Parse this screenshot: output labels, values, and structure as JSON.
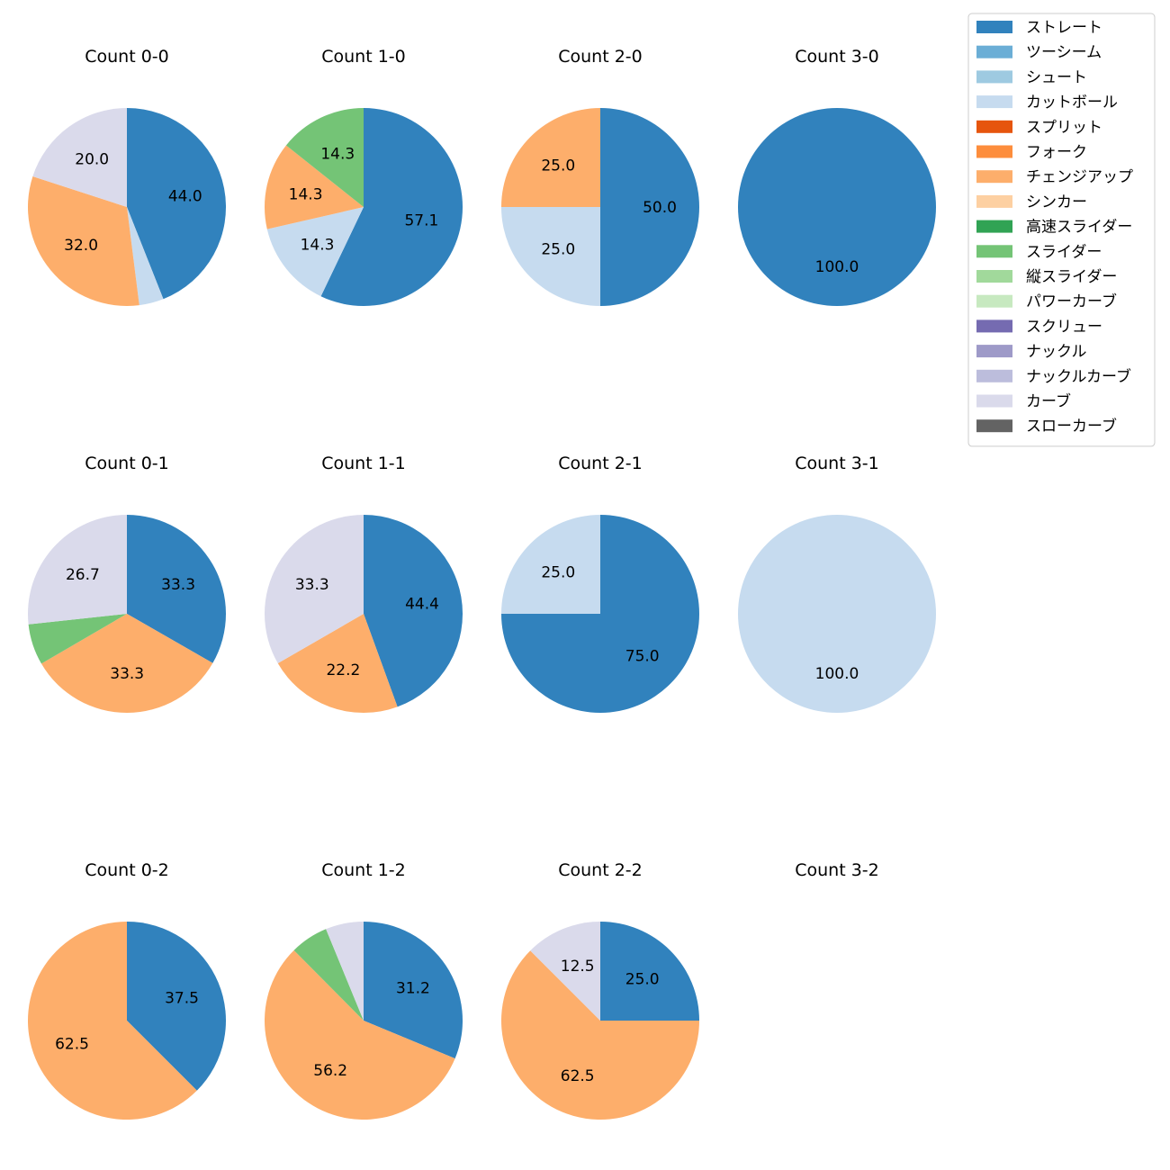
{
  "chart_data": {
    "type": "pie",
    "legend": {
      "placement": "top-right",
      "entries": [
        {
          "name": "ストレート",
          "color": "#3182bd"
        },
        {
          "name": "ツーシーム",
          "color": "#6baed6"
        },
        {
          "name": "シュート",
          "color": "#9ecae1"
        },
        {
          "name": "カットボール",
          "color": "#c6dbef"
        },
        {
          "name": "スプリット",
          "color": "#e6550d"
        },
        {
          "name": "フォーク",
          "color": "#fd8d3c"
        },
        {
          "name": "チェンジアップ",
          "color": "#fdae6b"
        },
        {
          "name": "シンカー",
          "color": "#fdd0a2"
        },
        {
          "name": "高速スライダー",
          "color": "#31a354"
        },
        {
          "name": "スライダー",
          "color": "#74c476"
        },
        {
          "name": "縦スライダー",
          "color": "#a1d99b"
        },
        {
          "name": "パワーカーブ",
          "color": "#c7e9c0"
        },
        {
          "name": "スクリュー",
          "color": "#756bb1"
        },
        {
          "name": "ナックル",
          "color": "#9e9ac8"
        },
        {
          "name": "ナックルカーブ",
          "color": "#bcbddc"
        },
        {
          "name": "カーブ",
          "color": "#dadaeb"
        },
        {
          "name": "スローカーブ",
          "color": "#636363"
        }
      ]
    },
    "pies": [
      {
        "title": "Count 0-0",
        "slices": [
          {
            "pitch": "ストレート",
            "value": 44.0,
            "label": "44.0"
          },
          {
            "pitch": "カットボール",
            "value": 4.0,
            "label": ""
          },
          {
            "pitch": "チェンジアップ",
            "value": 32.0,
            "label": "32.0"
          },
          {
            "pitch": "カーブ",
            "value": 20.0,
            "label": "20.0"
          }
        ]
      },
      {
        "title": "Count 1-0",
        "slices": [
          {
            "pitch": "ストレート",
            "value": 57.1,
            "label": "57.1"
          },
          {
            "pitch": "カットボール",
            "value": 14.3,
            "label": "14.3"
          },
          {
            "pitch": "チェンジアップ",
            "value": 14.3,
            "label": "14.3"
          },
          {
            "pitch": "スライダー",
            "value": 14.3,
            "label": "14.3"
          }
        ]
      },
      {
        "title": "Count 2-0",
        "slices": [
          {
            "pitch": "ストレート",
            "value": 50.0,
            "label": "50.0"
          },
          {
            "pitch": "カットボール",
            "value": 25.0,
            "label": "25.0"
          },
          {
            "pitch": "チェンジアップ",
            "value": 25.0,
            "label": "25.0"
          }
        ]
      },
      {
        "title": "Count 3-0",
        "slices": [
          {
            "pitch": "ストレート",
            "value": 100.0,
            "label": "100.0"
          }
        ]
      },
      {
        "title": "Count 0-1",
        "slices": [
          {
            "pitch": "ストレート",
            "value": 33.3,
            "label": "33.3"
          },
          {
            "pitch": "チェンジアップ",
            "value": 33.3,
            "label": "33.3"
          },
          {
            "pitch": "スライダー",
            "value": 6.7,
            "label": ""
          },
          {
            "pitch": "カーブ",
            "value": 26.7,
            "label": "26.7"
          }
        ]
      },
      {
        "title": "Count 1-1",
        "slices": [
          {
            "pitch": "ストレート",
            "value": 44.4,
            "label": "44.4"
          },
          {
            "pitch": "チェンジアップ",
            "value": 22.2,
            "label": "22.2"
          },
          {
            "pitch": "カーブ",
            "value": 33.3,
            "label": "33.3"
          }
        ]
      },
      {
        "title": "Count 2-1",
        "slices": [
          {
            "pitch": "ストレート",
            "value": 75.0,
            "label": "75.0"
          },
          {
            "pitch": "カットボール",
            "value": 25.0,
            "label": "25.0"
          }
        ]
      },
      {
        "title": "Count 3-1",
        "slices": [
          {
            "pitch": "カットボール",
            "value": 100.0,
            "label": "100.0"
          }
        ]
      },
      {
        "title": "Count 0-2",
        "slices": [
          {
            "pitch": "ストレート",
            "value": 37.5,
            "label": "37.5"
          },
          {
            "pitch": "チェンジアップ",
            "value": 62.5,
            "label": "62.5"
          }
        ]
      },
      {
        "title": "Count 1-2",
        "slices": [
          {
            "pitch": "ストレート",
            "value": 31.2,
            "label": "31.2"
          },
          {
            "pitch": "チェンジアップ",
            "value": 56.2,
            "label": "56.2"
          },
          {
            "pitch": "スライダー",
            "value": 6.2,
            "label": ""
          },
          {
            "pitch": "カーブ",
            "value": 6.2,
            "label": ""
          }
        ]
      },
      {
        "title": "Count 2-2",
        "slices": [
          {
            "pitch": "ストレート",
            "value": 25.0,
            "label": "25.0"
          },
          {
            "pitch": "チェンジアップ",
            "value": 62.5,
            "label": "62.5"
          },
          {
            "pitch": "カーブ",
            "value": 12.5,
            "label": "12.5"
          }
        ]
      },
      {
        "title": "Count 3-2",
        "slices": []
      }
    ]
  }
}
